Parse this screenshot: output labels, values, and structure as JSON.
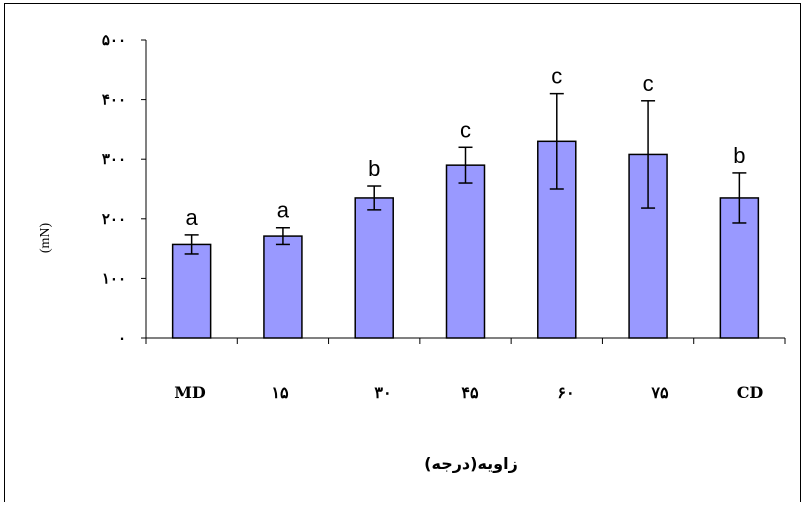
{
  "chart_data": {
    "type": "bar",
    "categories": [
      "MD",
      "۱۵",
      "۳۰",
      "۴۵",
      "۶۰",
      "۷۵",
      "CD"
    ],
    "values": [
      157,
      171,
      235,
      290,
      330,
      308,
      235
    ],
    "errors": [
      16,
      14,
      20,
      30,
      80,
      90,
      42
    ],
    "significance_labels": [
      "a",
      "a",
      "b",
      "c",
      "c",
      "c",
      "b"
    ],
    "ylabel": "(mN)",
    "xlabel": "زاویه(درجه)",
    "ylim": [
      0,
      500
    ],
    "yticks": [
      0,
      100,
      200,
      300,
      400,
      500
    ],
    "ytick_labels": [
      "۰",
      "۱۰۰",
      "۲۰۰",
      "۳۰۰",
      "۴۰۰",
      "۵۰۰"
    ],
    "grid": false,
    "bar_color": "#9999ff",
    "bar_edge": "#000000"
  }
}
